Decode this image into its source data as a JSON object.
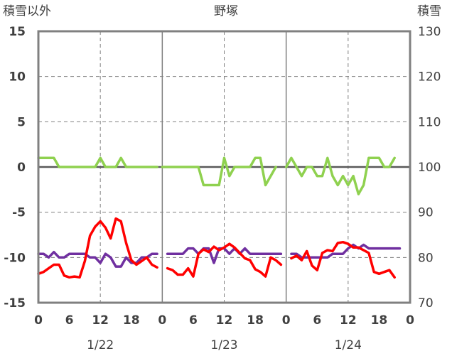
{
  "chart_data": {
    "type": "line",
    "title": "野塚",
    "left_axis_label": "積雪以外",
    "right_axis_label": "積雪",
    "left_ylim": [
      -15,
      15
    ],
    "left_yticks": [
      "15",
      "10",
      "5",
      "0",
      "-5",
      "-10",
      "-15"
    ],
    "right_ylim": [
      70,
      130
    ],
    "right_yticks": [
      "130",
      "120",
      "110",
      "100",
      "90",
      "80",
      "70"
    ],
    "x_hours": [
      0,
      72
    ],
    "xtick_labels": [
      "0",
      "6",
      "12",
      "18",
      "0",
      "6",
      "12",
      "18",
      "0",
      "6",
      "12",
      "18",
      "0"
    ],
    "day_labels": [
      "1/22",
      "1/23",
      "1/24"
    ],
    "grid": "dashed",
    "series": [
      {
        "color": "#8fd14f",
        "axis": "right",
        "segments": [
          [
            [
              0,
              102
            ],
            [
              1,
              102
            ],
            [
              2,
              102
            ],
            [
              3,
              102
            ],
            [
              4,
              100
            ],
            [
              5,
              100
            ],
            [
              6,
              100
            ],
            [
              7,
              100
            ],
            [
              8,
              100
            ],
            [
              9,
              100
            ],
            [
              10,
              100
            ],
            [
              11,
              100
            ],
            [
              12,
              102
            ],
            [
              13,
              100
            ],
            [
              14,
              100
            ],
            [
              15,
              100
            ],
            [
              16,
              102
            ],
            [
              17,
              100
            ],
            [
              18,
              100
            ],
            [
              19,
              100
            ],
            [
              20,
              100
            ],
            [
              21,
              100
            ],
            [
              22,
              100
            ],
            [
              23,
              100
            ]
          ],
          [
            [
              24,
              100
            ],
            [
              25,
              100
            ],
            [
              26,
              100
            ],
            [
              27,
              100
            ],
            [
              28,
              100
            ],
            [
              29,
              100
            ],
            [
              30,
              100
            ],
            [
              31,
              100
            ],
            [
              32,
              96
            ],
            [
              33,
              96
            ],
            [
              34,
              96
            ],
            [
              35,
              96
            ],
            [
              36,
              102
            ],
            [
              37,
              98
            ],
            [
              38,
              100
            ],
            [
              39,
              100
            ],
            [
              40,
              100
            ],
            [
              41,
              100
            ],
            [
              42,
              102
            ],
            [
              43,
              102
            ],
            [
              44,
              96
            ],
            [
              45,
              98
            ],
            [
              46,
              100
            ]
          ],
          [
            [
              48,
              100
            ],
            [
              49,
              102
            ],
            [
              50,
              100
            ],
            [
              51,
              98
            ],
            [
              52,
              100
            ],
            [
              53,
              100
            ],
            [
              54,
              98
            ],
            [
              55,
              98
            ],
            [
              56,
              102
            ],
            [
              57,
              98
            ],
            [
              58,
              96
            ],
            [
              59,
              98
            ],
            [
              60,
              96
            ],
            [
              61,
              98
            ],
            [
              62,
              94
            ],
            [
              63,
              96
            ],
            [
              64,
              102
            ],
            [
              65,
              102
            ],
            [
              66,
              102
            ],
            [
              67,
              100
            ],
            [
              68,
              100
            ],
            [
              69,
              102
            ]
          ]
        ]
      },
      {
        "color": "#7030a0",
        "axis": "left",
        "segments": [
          [
            [
              0,
              -9.6
            ],
            [
              1,
              -9.6
            ],
            [
              2,
              -10
            ],
            [
              3,
              -9.4
            ],
            [
              4,
              -10
            ],
            [
              5,
              -10
            ],
            [
              6,
              -9.6
            ],
            [
              7,
              -9.6
            ],
            [
              8,
              -9.6
            ],
            [
              9,
              -9.6
            ],
            [
              10,
              -10
            ],
            [
              11,
              -10
            ],
            [
              12,
              -10.6
            ],
            [
              13,
              -9.6
            ],
            [
              14,
              -10
            ],
            [
              15,
              -11
            ],
            [
              16,
              -11
            ],
            [
              17,
              -10
            ],
            [
              18,
              -10.6
            ],
            [
              19,
              -10.6
            ],
            [
              20,
              -10
            ],
            [
              21,
              -10
            ],
            [
              22,
              -9.6
            ],
            [
              23,
              -9.6
            ]
          ],
          [
            [
              25,
              -9.6
            ],
            [
              26,
              -9.6
            ],
            [
              27,
              -9.6
            ],
            [
              28,
              -9.6
            ],
            [
              29,
              -9
            ],
            [
              30,
              -9
            ],
            [
              31,
              -9.6
            ],
            [
              32,
              -9
            ],
            [
              33,
              -9
            ],
            [
              34,
              -10.6
            ],
            [
              35,
              -9
            ],
            [
              36,
              -9
            ],
            [
              37,
              -9.6
            ],
            [
              38,
              -9
            ],
            [
              39,
              -9.6
            ],
            [
              40,
              -9
            ],
            [
              41,
              -9.6
            ],
            [
              42,
              -9.6
            ],
            [
              43,
              -9.6
            ],
            [
              44,
              -9.6
            ],
            [
              45,
              -9.6
            ],
            [
              46,
              -9.6
            ],
            [
              47,
              -9.6
            ]
          ],
          [
            [
              49,
              -9.6
            ],
            [
              50,
              -9.6
            ],
            [
              51,
              -10
            ],
            [
              52,
              -10
            ],
            [
              53,
              -10
            ],
            [
              54,
              -10
            ],
            [
              55,
              -10
            ],
            [
              56,
              -10
            ],
            [
              57,
              -9.6
            ],
            [
              58,
              -9.6
            ],
            [
              59,
              -9.6
            ],
            [
              60,
              -9
            ],
            [
              61,
              -8.6
            ],
            [
              62,
              -9
            ],
            [
              63,
              -8.6
            ],
            [
              64,
              -9
            ],
            [
              65,
              -9
            ],
            [
              66,
              -9
            ],
            [
              67,
              -9
            ],
            [
              68,
              -9
            ],
            [
              69,
              -9
            ],
            [
              70,
              -9
            ]
          ]
        ]
      },
      {
        "color": "#ff0000",
        "axis": "left",
        "segments": [
          [
            [
              0,
              -11.8
            ],
            [
              1,
              -11.6
            ],
            [
              2,
              -11.2
            ],
            [
              3,
              -10.8
            ],
            [
              4,
              -10.8
            ],
            [
              5,
              -12
            ],
            [
              6,
              -12.2
            ],
            [
              7,
              -12.1
            ],
            [
              8,
              -12.2
            ],
            [
              9,
              -10.4
            ],
            [
              10,
              -7.6
            ],
            [
              11,
              -6.6
            ],
            [
              12,
              -6
            ],
            [
              13,
              -6.7
            ],
            [
              14,
              -7.9
            ],
            [
              15,
              -5.7
            ],
            [
              16,
              -6
            ],
            [
              17,
              -8.4
            ],
            [
              18,
              -10.3
            ],
            [
              19,
              -10.8
            ],
            [
              20,
              -10.4
            ],
            [
              21,
              -10
            ],
            [
              22,
              -10.8
            ],
            [
              23,
              -11.1
            ]
          ],
          [
            [
              25,
              -11.2
            ],
            [
              26,
              -11.4
            ],
            [
              27,
              -11.9
            ],
            [
              28,
              -11.9
            ],
            [
              29,
              -11.2
            ],
            [
              30,
              -12.1
            ],
            [
              31,
              -9.6
            ],
            [
              32,
              -9.1
            ],
            [
              33,
              -9.4
            ],
            [
              34,
              -8.8
            ],
            [
              35,
              -9.2
            ],
            [
              36,
              -8.9
            ],
            [
              37,
              -8.5
            ],
            [
              38,
              -8.9
            ],
            [
              39,
              -9.5
            ],
            [
              40,
              -10.1
            ],
            [
              41,
              -10.3
            ],
            [
              42,
              -11.3
            ],
            [
              43,
              -11.6
            ],
            [
              44,
              -12.1
            ],
            [
              45,
              -10
            ],
            [
              46,
              -10.3
            ],
            [
              47,
              -10.8
            ]
          ],
          [
            [
              49,
              -10.1
            ],
            [
              50,
              -9.8
            ],
            [
              51,
              -10.3
            ],
            [
              52,
              -9.3
            ],
            [
              53,
              -10.9
            ],
            [
              54,
              -11.4
            ],
            [
              55,
              -9.5
            ],
            [
              56,
              -9.2
            ],
            [
              57,
              -9.3
            ],
            [
              58,
              -8.4
            ],
            [
              59,
              -8.3
            ],
            [
              60,
              -8.5
            ],
            [
              61,
              -8.9
            ],
            [
              62,
              -8.9
            ],
            [
              63,
              -9.2
            ],
            [
              64,
              -9.5
            ],
            [
              65,
              -11.6
            ],
            [
              66,
              -11.8
            ],
            [
              67,
              -11.6
            ],
            [
              68,
              -11.4
            ],
            [
              69,
              -12.2
            ]
          ]
        ]
      }
    ]
  }
}
